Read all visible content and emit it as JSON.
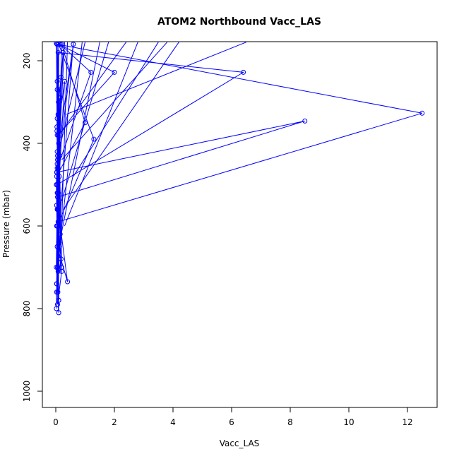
{
  "chart_data": {
    "type": "scatter",
    "title": "ATOM2 Northbound Vacc_LAS",
    "xlabel": "Vacc_LAS",
    "ylabel": "Pressure (mbar)",
    "xlim": [
      0,
      13
    ],
    "ylim": [
      1035,
      155
    ],
    "y_reversed": true,
    "x_ticks": [
      0,
      2,
      4,
      6,
      8,
      10,
      12
    ],
    "y_ticks": [
      200,
      400,
      600,
      800,
      1000
    ],
    "grid": false,
    "legend": "none",
    "series_color": "#0000ff",
    "marker": "open-circle",
    "connected": true,
    "series": [
      {
        "x": [
          0.02,
          0.05,
          0.08,
          0.4,
          0.05,
          0.02,
          0.06,
          0.12,
          0.3,
          0.05,
          0.1,
          0.03,
          0.08,
          0.05,
          0.12,
          0.03,
          0.15,
          0.06,
          0.02,
          0.1,
          0.05,
          0.15,
          0.08,
          0.03
        ],
        "y": [
          158,
          420,
          560,
          735,
          650,
          800,
          700,
          480,
          250,
          380,
          600,
          470,
          330,
          520,
          640,
          760,
          290,
          440,
          700,
          810,
          560,
          380,
          710,
          600
        ]
      },
      {
        "x": [
          0.04,
          0.1,
          0.02,
          0.07,
          0.15,
          0.05,
          0.25,
          0.06,
          0.1,
          0.03,
          0.09,
          0.2,
          0.05,
          0.08,
          0.12,
          0.04,
          0.06,
          0.18,
          0.03,
          0.1
        ],
        "y": [
          160,
          270,
          500,
          760,
          620,
          340,
          180,
          430,
          780,
          550,
          300,
          700,
          250,
          460,
          650,
          370,
          520,
          240,
          740,
          680
        ]
      },
      {
        "x": [
          0.15,
          1.2,
          0.05,
          0.1,
          2.0,
          0.08,
          0.05,
          6.4,
          0.08,
          0.04,
          8.5,
          0.06,
          0.05,
          12.5,
          0.08,
          0.1,
          1.3,
          0.05,
          0.2,
          1.0,
          0.03,
          0.6,
          0.1
        ],
        "y": [
          160,
          228,
          460,
          160,
          228,
          380,
          500,
          228,
          180,
          470,
          346,
          530,
          160,
          327,
          590,
          160,
          390,
          600,
          160,
          350,
          480,
          160,
          400
        ]
      },
      {
        "x": [
          0.05,
          0.08,
          0.12,
          0.05,
          0.18,
          0.03,
          0.1,
          0.07,
          0.14,
          0.04,
          0.09,
          0.2,
          0.06,
          0.1,
          0.05
        ],
        "y": [
          270,
          330,
          290,
          600,
          680,
          740,
          780,
          560,
          430,
          360,
          520,
          710,
          790,
          640,
          450
        ]
      }
    ],
    "fan_lines": [
      {
        "x": [
          0.6,
          3.5
        ],
        "y": [
          480,
          155
        ]
      },
      {
        "x": [
          0.25,
          4.2
        ],
        "y": [
          560,
          155
        ]
      },
      {
        "x": [
          0.1,
          1.5
        ],
        "y": [
          650,
          155
        ]
      },
      {
        "x": [
          0.3,
          2.8
        ],
        "y": [
          600,
          155
        ]
      },
      {
        "x": [
          0.05,
          0.9
        ],
        "y": [
          700,
          155
        ]
      },
      {
        "x": [
          0.1,
          0.6
        ],
        "y": [
          620,
          155
        ]
      },
      {
        "x": [
          0.2,
          1.8
        ],
        "y": [
          540,
          155
        ]
      },
      {
        "x": [
          0.15,
          0.4
        ],
        "y": [
          710,
          155
        ]
      },
      {
        "x": [
          0.05,
          0.3
        ],
        "y": [
          500,
          155
        ]
      },
      {
        "x": [
          0.1,
          2.4
        ],
        "y": [
          380,
          155
        ]
      },
      {
        "x": [
          0.1,
          1.0
        ],
        "y": [
          420,
          155
        ]
      },
      {
        "x": [
          0.2,
          3.8
        ],
        "y": [
          440,
          155
        ]
      },
      {
        "x": [
          0.35,
          6.5
        ],
        "y": [
          330,
          155
        ]
      }
    ]
  }
}
